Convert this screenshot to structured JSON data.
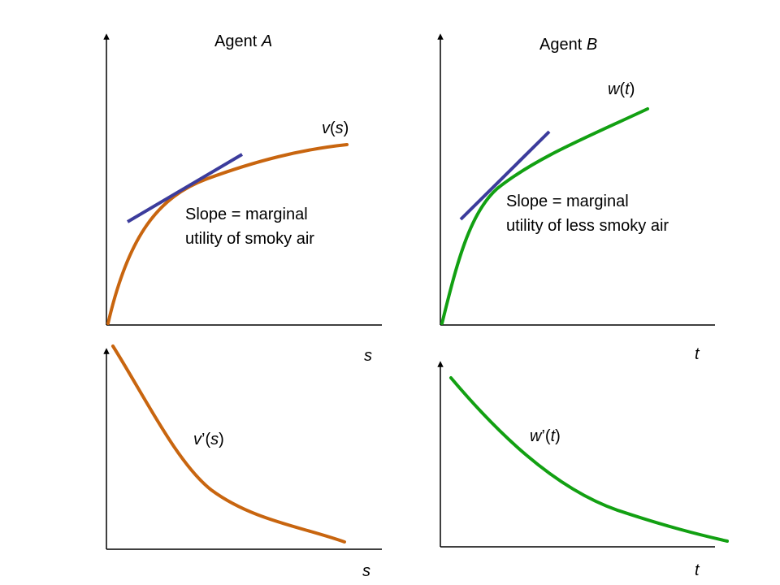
{
  "colors": {
    "axis": "#000000",
    "agent_a_curve": "#c8650f",
    "agent_b_curve": "#12a012",
    "tangent": "#3c3c9c"
  },
  "panels": {
    "agent_a": {
      "title_plain": "Agent ",
      "title_italic": "A",
      "curve_label": {
        "fn": "v",
        "open": "(",
        "arg": "s",
        "close": ")"
      },
      "annotation_line1": "Slope = marginal",
      "annotation_line2": "utility of smoky air",
      "axis_label": "s"
    },
    "agent_b": {
      "title_plain": "Agent ",
      "title_italic": "B",
      "curve_label": {
        "fn": "w",
        "open": "(",
        "arg": "t",
        "close": ")"
      },
      "annotation_line1": "Slope = marginal",
      "annotation_line2": "utility of less smoky air",
      "axis_label": "t"
    },
    "derivative_a": {
      "curve_label": {
        "fn": "v",
        "prime": "’",
        "open": "(",
        "arg": "s",
        "close": ")"
      },
      "axis_label": "s"
    },
    "derivative_b": {
      "curve_label": {
        "fn": "w",
        "prime": "’",
        "open": "(",
        "arg": "t",
        "close": ")"
      },
      "axis_label": "t"
    }
  }
}
